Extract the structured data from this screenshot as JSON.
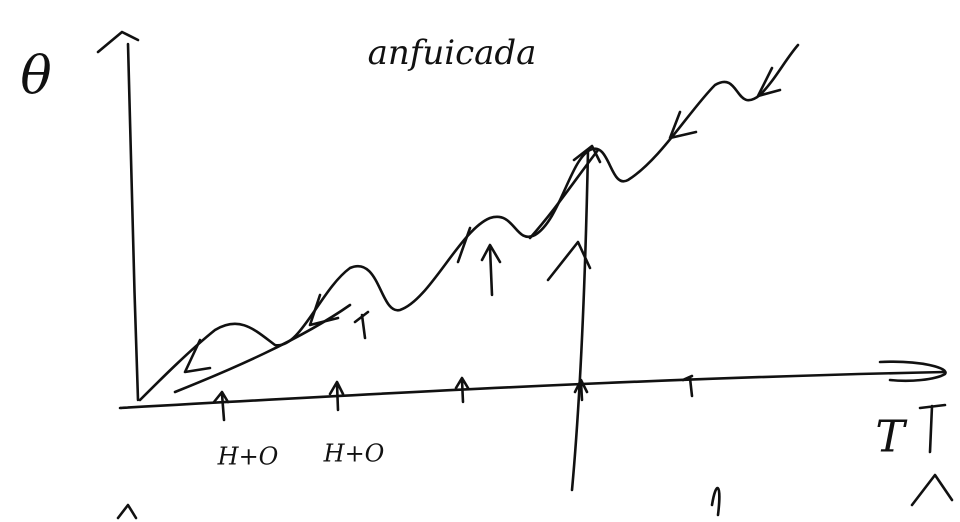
{
  "axes": {
    "y_label": "θ",
    "x_label": "T"
  },
  "title": "anfuicada",
  "labels": [
    "H+O",
    "H+O"
  ]
}
